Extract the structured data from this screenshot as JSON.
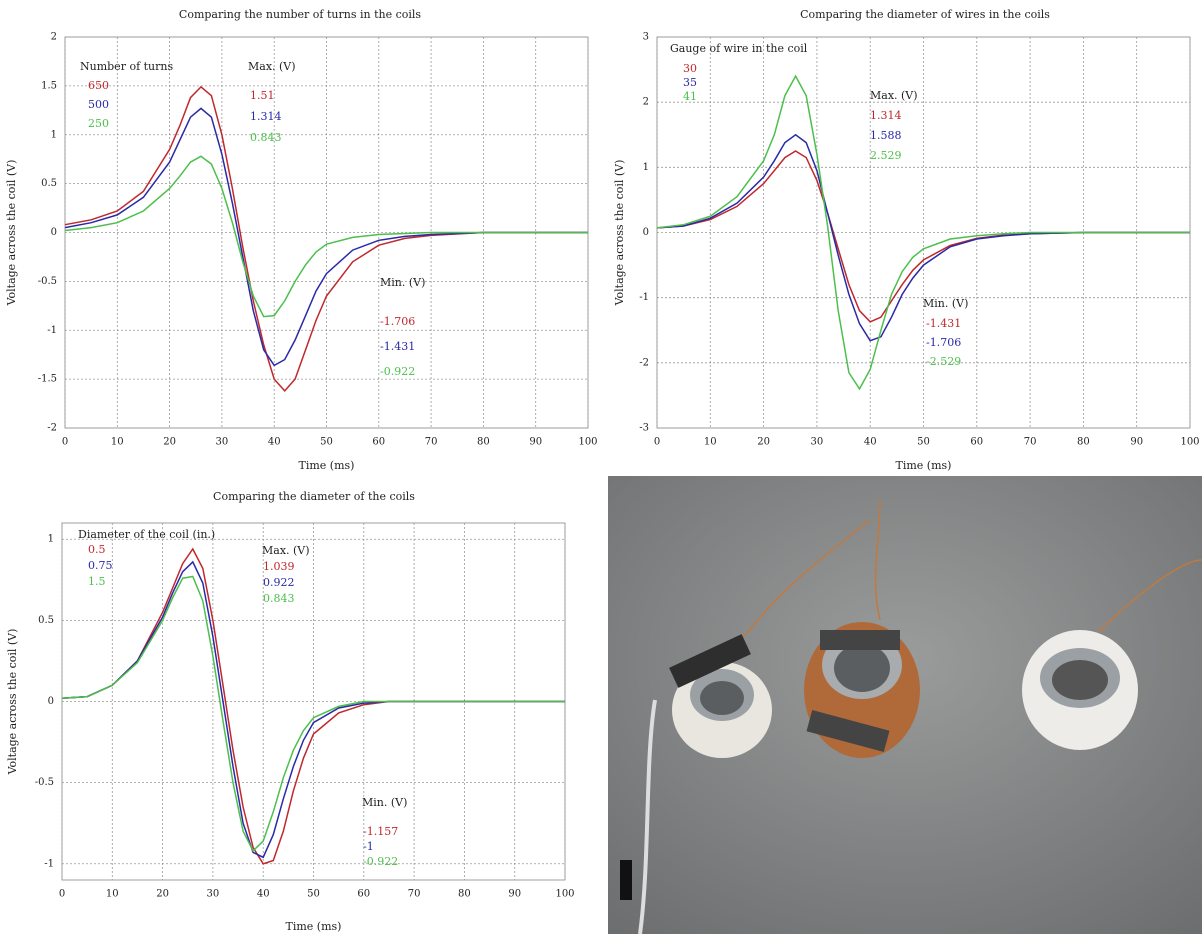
{
  "chart_data": [
    {
      "type": "line",
      "title": "Comparing the number of turns in the coils",
      "x_label": "Time (ms)",
      "y_label": "Voltage across the coil (V)",
      "legend_title": "Number of turns",
      "max_title": "Max. (V)",
      "min_title": "Min. (V)",
      "x": [
        0,
        5,
        10,
        15,
        20,
        22,
        24,
        26,
        28,
        30,
        32,
        34,
        36,
        38,
        40,
        42,
        44,
        46,
        48,
        50,
        55,
        60,
        65,
        70,
        80,
        90,
        100
      ],
      "series": [
        {
          "name": "650",
          "color": "#c0282d",
          "max": 1.51,
          "min": -1.706,
          "values": [
            0.08,
            0.13,
            0.22,
            0.42,
            0.85,
            1.1,
            1.38,
            1.49,
            1.4,
            1.0,
            0.45,
            -0.15,
            -0.7,
            -1.15,
            -1.5,
            -1.62,
            -1.5,
            -1.2,
            -0.9,
            -0.65,
            -0.3,
            -0.13,
            -0.06,
            -0.03,
            0,
            0,
            0
          ]
        },
        {
          "name": "500",
          "color": "#2a2aa8",
          "max": 1.314,
          "min": -1.431,
          "values": [
            0.05,
            0.1,
            0.18,
            0.36,
            0.72,
            0.95,
            1.18,
            1.27,
            1.18,
            0.8,
            0.3,
            -0.25,
            -0.8,
            -1.2,
            -1.36,
            -1.3,
            -1.1,
            -0.85,
            -0.6,
            -0.42,
            -0.18,
            -0.08,
            -0.04,
            -0.02,
            0,
            0,
            0
          ]
        },
        {
          "name": "250",
          "color": "#4cbf4c",
          "max": 0.843,
          "min": -0.922,
          "values": [
            0.02,
            0.05,
            0.1,
            0.22,
            0.45,
            0.58,
            0.72,
            0.78,
            0.7,
            0.45,
            0.1,
            -0.3,
            -0.65,
            -0.86,
            -0.85,
            -0.7,
            -0.5,
            -0.33,
            -0.2,
            -0.12,
            -0.05,
            -0.02,
            -0.01,
            0,
            0,
            0,
            0
          ]
        }
      ],
      "xlim": [
        0,
        100
      ],
      "xticks": [
        0,
        10,
        20,
        30,
        40,
        50,
        60,
        70,
        80,
        90,
        100
      ],
      "ylim": [
        -2,
        2
      ],
      "yticks": [
        -2,
        -1.5,
        -1,
        -0.5,
        0,
        0.5,
        1,
        1.5,
        2
      ],
      "grid": true
    },
    {
      "type": "line",
      "title": "Comparing the diameter of wires in the coils",
      "x_label": "Time (ms)",
      "y_label": "Voltage across the coil (V)",
      "legend_title": "Gauge of wire in the coil",
      "max_title": "Max. (V)",
      "min_title": "Min. (V)",
      "x": [
        0,
        5,
        10,
        15,
        20,
        22,
        24,
        26,
        28,
        30,
        32,
        34,
        36,
        38,
        40,
        42,
        44,
        46,
        48,
        50,
        55,
        60,
        65,
        70,
        80,
        90,
        100
      ],
      "series": [
        {
          "name": "30",
          "color": "#c0282d",
          "max": 1.314,
          "min": -1.431,
          "values": [
            0.07,
            0.1,
            0.2,
            0.4,
            0.75,
            0.95,
            1.15,
            1.25,
            1.15,
            0.8,
            0.3,
            -0.25,
            -0.8,
            -1.2,
            -1.37,
            -1.3,
            -1.05,
            -0.8,
            -0.58,
            -0.42,
            -0.2,
            -0.09,
            -0.04,
            -0.02,
            0,
            0,
            0
          ]
        },
        {
          "name": "35",
          "color": "#2a2aa8",
          "max": 1.588,
          "min": -1.706,
          "values": [
            0.07,
            0.1,
            0.22,
            0.45,
            0.85,
            1.1,
            1.38,
            1.5,
            1.38,
            0.95,
            0.3,
            -0.35,
            -0.95,
            -1.4,
            -1.66,
            -1.6,
            -1.3,
            -0.95,
            -0.7,
            -0.5,
            -0.22,
            -0.1,
            -0.05,
            -0.02,
            0,
            0,
            0
          ]
        },
        {
          "name": "41",
          "color": "#4cbf4c",
          "max": 2.529,
          "min": -2.529,
          "values": [
            0.07,
            0.12,
            0.25,
            0.55,
            1.1,
            1.5,
            2.1,
            2.4,
            2.1,
            1.2,
            0.1,
            -1.2,
            -2.15,
            -2.4,
            -2.1,
            -1.5,
            -0.95,
            -0.6,
            -0.38,
            -0.25,
            -0.1,
            -0.05,
            -0.02,
            0,
            0,
            0,
            0
          ]
        }
      ],
      "xlim": [
        0,
        100
      ],
      "xticks": [
        0,
        10,
        20,
        30,
        40,
        50,
        60,
        70,
        80,
        90,
        100
      ],
      "ylim": [
        -3,
        3
      ],
      "yticks": [
        -3,
        -2,
        -1,
        0,
        1,
        2,
        3
      ],
      "grid": true
    },
    {
      "type": "line",
      "title": "Comparing the diameter of the coils",
      "x_label": "Time (ms)",
      "y_label": "Voltage across the coil (V)",
      "legend_title": "Diameter of the coil (in.)",
      "max_title": "Max. (V)",
      "min_title": "Min. (V)",
      "x": [
        0,
        5,
        10,
        15,
        20,
        22,
        24,
        26,
        28,
        30,
        32,
        34,
        36,
        38,
        40,
        42,
        44,
        46,
        48,
        50,
        55,
        60,
        65,
        70,
        80,
        90,
        100
      ],
      "series": [
        {
          "name": "0.5",
          "color": "#c0282d",
          "max": 1.039,
          "min": -1.157,
          "values": [
            0.02,
            0.03,
            0.1,
            0.25,
            0.55,
            0.7,
            0.85,
            0.94,
            0.82,
            0.5,
            0.1,
            -0.3,
            -0.65,
            -0.9,
            -1.0,
            -0.98,
            -0.8,
            -0.55,
            -0.35,
            -0.2,
            -0.07,
            -0.02,
            0,
            0,
            0,
            0,
            0
          ]
        },
        {
          "name": "0.75",
          "color": "#2a2aa8",
          "max": 0.922,
          "min": -1,
          "values": [
            0.02,
            0.03,
            0.1,
            0.25,
            0.52,
            0.67,
            0.8,
            0.86,
            0.73,
            0.4,
            0,
            -0.4,
            -0.75,
            -0.93,
            -0.96,
            -0.82,
            -0.6,
            -0.4,
            -0.24,
            -0.13,
            -0.04,
            -0.01,
            0,
            0,
            0,
            0,
            0
          ]
        },
        {
          "name": "1.5",
          "color": "#4cbf4c",
          "max": 0.843,
          "min": -0.922,
          "values": [
            0.02,
            0.03,
            0.1,
            0.24,
            0.5,
            0.64,
            0.76,
            0.77,
            0.62,
            0.28,
            -0.12,
            -0.5,
            -0.8,
            -0.92,
            -0.86,
            -0.68,
            -0.47,
            -0.3,
            -0.18,
            -0.1,
            -0.03,
            0,
            0,
            0,
            0,
            0,
            0
          ]
        }
      ],
      "xlim": [
        0,
        100
      ],
      "xticks": [
        0,
        10,
        20,
        30,
        40,
        50,
        60,
        70,
        80,
        90,
        100
      ],
      "ylim": [
        -1.1,
        1.1
      ],
      "yticks": [
        -1,
        -0.5,
        0,
        0.5,
        1
      ],
      "grid": true
    }
  ]
}
